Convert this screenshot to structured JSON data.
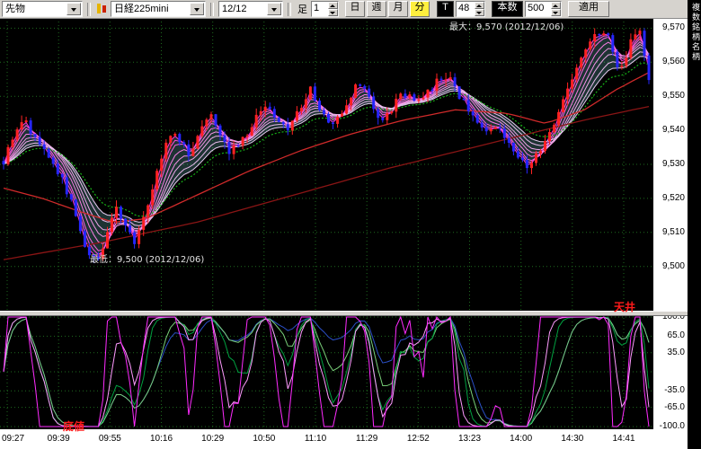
{
  "colors": {
    "toolbar_bg": "#d6d3ce",
    "panel_bg": "#000000",
    "grid": "#1e6a1e",
    "up_candle": "#ff2222",
    "down_candle": "#2626ff",
    "ribbon_fill": "rgba(150,255,255,0.20)",
    "green_ma": "#17b117",
    "mid_ma": "#cf2a2a",
    "slow_ma": "#8a1515",
    "annotation_red": "#ff1a1a",
    "annotation_white": "#e0e0e0",
    "active_period_bg": "#ffef3e",
    "axis_bg": "#ffffff"
  },
  "toolbar": {
    "instrument_type": "先物",
    "symbol": "日経225mini",
    "contract_month": "12/12",
    "bar_label": "足",
    "bar_interval": "1",
    "period_buttons": [
      {
        "label": "日",
        "active": false
      },
      {
        "label": "週",
        "active": false
      },
      {
        "label": "月",
        "active": false
      },
      {
        "label": "分",
        "active": true
      }
    ],
    "tick_button": "T",
    "tick_interval": "48",
    "count_label": "本数",
    "count_value": "500",
    "apply_label": "適用"
  },
  "right_strip": {
    "vertical_text": "複数銘柄名柄"
  },
  "chart_data": [
    {
      "type": "candlestick",
      "name": "nikkei225mini-1min",
      "bars": 144,
      "y_range": [
        9487,
        9573
      ],
      "y_ticks": [
        9570,
        9560,
        9550,
        9540,
        9530,
        9520,
        9510,
        9500
      ],
      "y_tick_labels": [
        "9,570",
        "9,560",
        "9,550",
        "9,540",
        "9,530",
        "9,520",
        "9,510",
        "9,500"
      ],
      "x_ticks": [
        "09:27",
        "09:39",
        "09:55",
        "10:16",
        "10:29",
        "10:50",
        "11:10",
        "11:29",
        "12:52",
        "13:23",
        "14:00",
        "14:30",
        "14:41"
      ],
      "annotations": {
        "max_label": "最大：9,570 (2012/12/06)",
        "min_label": "最低：9,500 (2012/12/06)"
      },
      "price_path": [
        [
          0,
          9531
        ],
        [
          0.015,
          9537
        ],
        [
          0.03,
          9544
        ],
        [
          0.05,
          9537
        ],
        [
          0.07,
          9532
        ],
        [
          0.09,
          9526
        ],
        [
          0.11,
          9516
        ],
        [
          0.13,
          9504
        ],
        [
          0.145,
          9501
        ],
        [
          0.16,
          9509
        ],
        [
          0.175,
          9518
        ],
        [
          0.19,
          9511
        ],
        [
          0.205,
          9507
        ],
        [
          0.22,
          9516
        ],
        [
          0.24,
          9530
        ],
        [
          0.26,
          9540
        ],
        [
          0.275,
          9536
        ],
        [
          0.29,
          9533
        ],
        [
          0.305,
          9541
        ],
        [
          0.32,
          9546
        ],
        [
          0.335,
          9540
        ],
        [
          0.35,
          9534
        ],
        [
          0.37,
          9537
        ],
        [
          0.39,
          9543
        ],
        [
          0.41,
          9548
        ],
        [
          0.425,
          9542
        ],
        [
          0.44,
          9540
        ],
        [
          0.46,
          9547
        ],
        [
          0.475,
          9552
        ],
        [
          0.49,
          9546
        ],
        [
          0.51,
          9541
        ],
        [
          0.53,
          9548
        ],
        [
          0.55,
          9554
        ],
        [
          0.565,
          9550
        ],
        [
          0.58,
          9543
        ],
        [
          0.6,
          9546
        ],
        [
          0.62,
          9551
        ],
        [
          0.64,
          9549
        ],
        [
          0.66,
          9551
        ],
        [
          0.675,
          9555
        ],
        [
          0.69,
          9556
        ],
        [
          0.71,
          9549
        ],
        [
          0.73,
          9543
        ],
        [
          0.75,
          9538
        ],
        [
          0.765,
          9542
        ],
        [
          0.78,
          9538
        ],
        [
          0.8,
          9531
        ],
        [
          0.815,
          9529
        ],
        [
          0.83,
          9534
        ],
        [
          0.85,
          9541
        ],
        [
          0.865,
          9548
        ],
        [
          0.88,
          9555
        ],
        [
          0.895,
          9561
        ],
        [
          0.91,
          9566
        ],
        [
          0.925,
          9569
        ],
        [
          0.935,
          9570
        ],
        [
          0.945,
          9563
        ],
        [
          0.955,
          9557
        ],
        [
          0.965,
          9562
        ],
        [
          0.975,
          9567
        ],
        [
          0.985,
          9569
        ],
        [
          1,
          9554
        ]
      ],
      "ribbon_periods": [
        2,
        3,
        4,
        6,
        8,
        10,
        13,
        16
      ],
      "ribbon_colors": [
        "#ff2fd9",
        "#ff49dd",
        "#fb63e0",
        "#f67ce2",
        "#f292e5",
        "#eda7e8",
        "#e9baec",
        "#e5ccf0"
      ],
      "green_ma_period": 21,
      "overlays": {
        "mid_ma": [
          [
            0,
            9523
          ],
          [
            0.06,
            9520
          ],
          [
            0.12,
            9516
          ],
          [
            0.17,
            9513
          ],
          [
            0.22,
            9514
          ],
          [
            0.3,
            9521
          ],
          [
            0.38,
            9528
          ],
          [
            0.46,
            9534
          ],
          [
            0.54,
            9539
          ],
          [
            0.62,
            9543
          ],
          [
            0.7,
            9546
          ],
          [
            0.78,
            9545
          ],
          [
            0.84,
            9542
          ],
          [
            0.9,
            9546
          ],
          [
            0.95,
            9552
          ],
          [
            1,
            9557
          ]
        ],
        "slow_ma": [
          [
            0,
            9502
          ],
          [
            0.15,
            9507
          ],
          [
            0.3,
            9513
          ],
          [
            0.45,
            9521
          ],
          [
            0.6,
            9529
          ],
          [
            0.75,
            9536
          ],
          [
            0.9,
            9543
          ],
          [
            1,
            9547
          ]
        ]
      },
      "limits": {
        "max": 9570,
        "min": 9500
      }
    },
    {
      "type": "line",
      "name": "rci-oscillator",
      "y_range": [
        -105,
        105
      ],
      "y_ticks": [
        100,
        65,
        35,
        -35,
        -65,
        -100
      ],
      "y_tick_labels": [
        "100.0",
        "65.0",
        "35.0",
        "-35.0",
        "-65.0",
        "-100.0"
      ],
      "grid_levels": [
        100,
        65,
        35,
        0,
        -35,
        -65,
        -100
      ],
      "annotations": {
        "top": "天井",
        "bottom": "底値"
      },
      "lines": [
        {
          "name": "rci-fast",
          "period": 7,
          "smooth": 0,
          "color": "#ff2bff"
        },
        {
          "name": "rci-fast2",
          "period": 11,
          "smooth": 2,
          "color": "#ff9bff"
        },
        {
          "name": "rci-mid",
          "period": 19,
          "smooth": 2,
          "color": "#00a040"
        },
        {
          "name": "rci-mid2",
          "period": 30,
          "smooth": 3,
          "color": "#79cf79"
        },
        {
          "name": "rci-slow",
          "period": 48,
          "smooth": 3,
          "color": "#2b50c8"
        }
      ]
    }
  ]
}
